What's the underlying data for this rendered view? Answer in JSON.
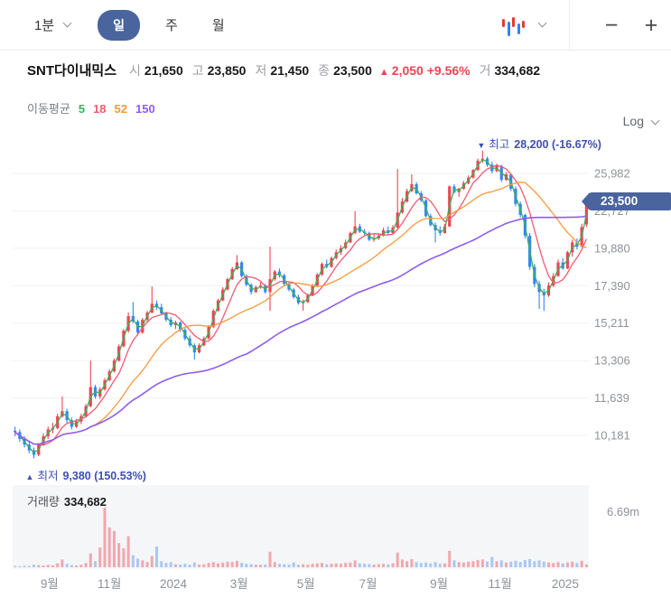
{
  "toolbar": {
    "interval_dropdown": "1분",
    "tabs": [
      {
        "label": "일",
        "active": true
      },
      {
        "label": "주",
        "active": false
      },
      {
        "label": "월",
        "active": false
      }
    ],
    "zoom_out": "−",
    "zoom_in": "+"
  },
  "header": {
    "name": "SNT다이내믹스",
    "open_label": "시",
    "open": "21,650",
    "high_label": "고",
    "high": "23,850",
    "low_label": "저",
    "low": "21,450",
    "close_label": "종",
    "close": "23,500",
    "change_arrow": "▲",
    "change": "2,050",
    "change_pct": "+9.56%",
    "volume_label": "거",
    "volume": "334,682"
  },
  "ma_legend": {
    "label": "이동평균",
    "periods": [
      "5",
      "18",
      "52",
      "150"
    ]
  },
  "scale_control": {
    "label": "Log"
  },
  "annotations": {
    "high": {
      "arrow": "▼",
      "label": "최고",
      "value": "28,200",
      "pct": "(-16.67%)"
    },
    "low": {
      "arrow": "▲",
      "label": "최저",
      "value": "9,380",
      "pct": "(150.53%)"
    }
  },
  "price_badge": "23,500",
  "volume_panel": {
    "label": "거래량",
    "value": "334,682",
    "axis_label": "6.69m"
  },
  "chart_data": {
    "type": "candlestick+volume",
    "scale": "log",
    "grid": true,
    "current_price": 23500,
    "high_value": 28200,
    "low_value": 9380,
    "y_axis": [
      {
        "value": 25982,
        "label": "25,982"
      },
      {
        "value": 22727,
        "label": "22,727"
      },
      {
        "value": 19880,
        "label": "19,880"
      },
      {
        "value": 17390,
        "label": "17,390"
      },
      {
        "value": 15211,
        "label": "15,211"
      },
      {
        "value": 13306,
        "label": "13,306"
      },
      {
        "value": 11639,
        "label": "11,639"
      },
      {
        "value": 10181,
        "label": "10,181"
      }
    ],
    "x_labels": [
      {
        "label": "9월",
        "pos": 0.064
      },
      {
        "label": "11월",
        "pos": 0.168
      },
      {
        "label": "2024",
        "pos": 0.279
      },
      {
        "label": "3월",
        "pos": 0.393
      },
      {
        "label": "5월",
        "pos": 0.509
      },
      {
        "label": "7월",
        "pos": 0.617
      },
      {
        "label": "9월",
        "pos": 0.74
      },
      {
        "label": "11월",
        "pos": 0.846
      },
      {
        "label": "2025",
        "pos": 0.959
      }
    ],
    "ma": {
      "display_periods": [
        5,
        18,
        52,
        150
      ],
      "render_windows": [
        2,
        6,
        17,
        50
      ],
      "colors": [
        "#35b25a",
        "#f15b6e",
        "#f59a3c",
        "#8f5df0"
      ]
    },
    "colors": {
      "up": "#f04452",
      "down": "#3485fa",
      "vol_up": "#f2a7ae",
      "vol_down": "#a9c8f4"
    },
    "volume_axis_max": 6.69,
    "candles": [
      [
        10350,
        10500,
        10150,
        10300
      ],
      [
        10300,
        10400,
        9950,
        10050
      ],
      [
        10050,
        10150,
        9750,
        9850
      ],
      [
        9850,
        9950,
        9550,
        9650
      ],
      [
        9650,
        9750,
        9380,
        9500
      ],
      [
        9500,
        9900,
        9450,
        9850
      ],
      [
        9850,
        10250,
        9800,
        10150
      ],
      [
        10150,
        10500,
        10050,
        10400
      ],
      [
        10400,
        10650,
        10250,
        10450
      ],
      [
        10450,
        11000,
        10400,
        10900
      ],
      [
        10900,
        11700,
        10850,
        11100
      ],
      [
        11100,
        11200,
        10650,
        10750
      ],
      [
        10750,
        10850,
        10400,
        10500
      ],
      [
        10500,
        10800,
        10450,
        10700
      ],
      [
        10700,
        11000,
        10600,
        10900
      ],
      [
        10900,
        11400,
        10850,
        11300
      ],
      [
        11300,
        13300,
        11250,
        12100
      ],
      [
        12100,
        12200,
        11600,
        11700
      ],
      [
        11700,
        12100,
        11600,
        12000
      ],
      [
        12000,
        12500,
        11950,
        12400
      ],
      [
        12400,
        12900,
        12350,
        12800
      ],
      [
        12800,
        13400,
        12750,
        13300
      ],
      [
        13300,
        14100,
        13250,
        14000
      ],
      [
        14000,
        14900,
        13950,
        14800
      ],
      [
        14800,
        15800,
        14700,
        15600
      ],
      [
        15600,
        16400,
        15200,
        15300
      ],
      [
        15300,
        15400,
        14550,
        14700
      ],
      [
        14700,
        15500,
        14650,
        15400
      ],
      [
        15400,
        15900,
        15300,
        15800
      ],
      [
        15800,
        17350,
        15750,
        16300
      ],
      [
        16300,
        16500,
        15950,
        16100
      ],
      [
        16100,
        16300,
        15650,
        15750
      ],
      [
        15750,
        15850,
        15300,
        15400
      ],
      [
        15400,
        15550,
        15000,
        15100
      ],
      [
        15100,
        15350,
        14900,
        15250
      ],
      [
        15250,
        15300,
        14750,
        14850
      ],
      [
        14850,
        14950,
        14300,
        14400
      ],
      [
        14400,
        14550,
        13950,
        14050
      ],
      [
        14050,
        14150,
        13350,
        13700
      ],
      [
        13700,
        14150,
        13650,
        14050
      ],
      [
        14050,
        14500,
        14000,
        14400
      ],
      [
        14400,
        15100,
        14350,
        15000
      ],
      [
        15000,
        16000,
        14950,
        15900
      ],
      [
        15900,
        16600,
        15850,
        16500
      ],
      [
        16500,
        17300,
        16450,
        17150
      ],
      [
        17150,
        17900,
        17100,
        17800
      ],
      [
        17800,
        18600,
        17750,
        18450
      ],
      [
        18450,
        19400,
        18400,
        18900
      ],
      [
        18900,
        19000,
        17900,
        18000
      ],
      [
        18000,
        18100,
        17350,
        17450
      ],
      [
        17450,
        17550,
        16850,
        17000
      ],
      [
        17000,
        17400,
        16950,
        17300
      ],
      [
        17300,
        17600,
        17200,
        17400
      ],
      [
        17400,
        17500,
        16900,
        17000
      ],
      [
        17000,
        20000,
        15900,
        17800
      ],
      [
        17800,
        18400,
        17700,
        18300
      ],
      [
        18300,
        18500,
        17900,
        18050
      ],
      [
        18050,
        18150,
        17400,
        17500
      ],
      [
        17500,
        17650,
        17050,
        17150
      ],
      [
        17150,
        17250,
        16600,
        16700
      ],
      [
        16700,
        16850,
        16250,
        16350
      ],
      [
        16350,
        16550,
        15900,
        16400
      ],
      [
        16400,
        16900,
        16350,
        16800
      ],
      [
        16800,
        17500,
        16750,
        17400
      ],
      [
        17400,
        18200,
        17350,
        18100
      ],
      [
        18100,
        18900,
        18000,
        18800
      ],
      [
        18800,
        19100,
        18500,
        18600
      ],
      [
        18600,
        19300,
        18550,
        19200
      ],
      [
        19200,
        19800,
        19100,
        19600
      ],
      [
        19600,
        20100,
        19400,
        19900
      ],
      [
        19900,
        20500,
        19800,
        20300
      ],
      [
        20300,
        21100,
        20250,
        21000
      ],
      [
        21000,
        22700,
        20900,
        21500
      ],
      [
        21500,
        21700,
        21000,
        21100
      ],
      [
        21100,
        21300,
        20800,
        21000
      ],
      [
        21000,
        21100,
        20400,
        20500
      ],
      [
        20500,
        20900,
        20350,
        20600
      ],
      [
        20600,
        21000,
        20500,
        20800
      ],
      [
        20800,
        21400,
        20750,
        21200
      ],
      [
        21200,
        21500,
        20900,
        21000
      ],
      [
        21000,
        21600,
        20950,
        21400
      ],
      [
        21400,
        26400,
        21350,
        22600
      ],
      [
        22600,
        23800,
        22500,
        23500
      ],
      [
        23500,
        24600,
        23400,
        24400
      ],
      [
        24400,
        25900,
        24300,
        25000
      ],
      [
        25000,
        25200,
        24100,
        24200
      ],
      [
        24200,
        24400,
        23450,
        23600
      ],
      [
        23600,
        23700,
        22200,
        22300
      ],
      [
        22300,
        22500,
        21500,
        21600
      ],
      [
        21600,
        21800,
        20300,
        21200
      ],
      [
        21200,
        21500,
        20800,
        21000
      ],
      [
        21000,
        21700,
        20950,
        21500
      ],
      [
        21500,
        24900,
        21450,
        24800
      ],
      [
        24800,
        25000,
        24200,
        24300
      ],
      [
        24300,
        24700,
        23900,
        24600
      ],
      [
        24600,
        25300,
        24500,
        25100
      ],
      [
        25100,
        25800,
        25000,
        25600
      ],
      [
        25600,
        26400,
        25500,
        26300
      ],
      [
        26300,
        27400,
        26200,
        27200
      ],
      [
        27200,
        28200,
        27000,
        27400
      ],
      [
        27400,
        27600,
        26600,
        26800
      ],
      [
        26800,
        27100,
        26000,
        26200
      ],
      [
        26200,
        26900,
        26100,
        26700
      ],
      [
        26700,
        26800,
        25200,
        25400
      ],
      [
        25400,
        26100,
        25300,
        25900
      ],
      [
        25900,
        26000,
        24400,
        24600
      ],
      [
        24600,
        24800,
        23100,
        23300
      ],
      [
        23300,
        23500,
        22200,
        22400
      ],
      [
        22400,
        22500,
        20600,
        20800
      ],
      [
        20800,
        21000,
        18400,
        18600
      ],
      [
        18600,
        18800,
        17300,
        17500
      ],
      [
        17500,
        17700,
        16000,
        17000
      ],
      [
        17000,
        17200,
        15900,
        16800
      ],
      [
        16800,
        17600,
        16700,
        17400
      ],
      [
        17400,
        18200,
        17300,
        18000
      ],
      [
        18000,
        19100,
        17950,
        18900
      ],
      [
        18900,
        19200,
        18400,
        18500
      ],
      [
        18500,
        19700,
        18450,
        19600
      ],
      [
        19600,
        20500,
        19300,
        20300
      ],
      [
        20300,
        20600,
        19800,
        20000
      ],
      [
        20000,
        21700,
        19950,
        21450
      ],
      [
        21650,
        23850,
        21450,
        23500
      ]
    ],
    "volumes_m": [
      0.15,
      0.12,
      0.18,
      0.14,
      0.3,
      0.25,
      0.2,
      0.28,
      0.22,
      0.45,
      0.9,
      0.4,
      0.25,
      0.2,
      0.3,
      0.5,
      1.6,
      0.7,
      2.3,
      6.9,
      4.6,
      4.2,
      2.8,
      2.2,
      3.6,
      1.4,
      1.0,
      0.8,
      0.6,
      1.3,
      2.4,
      0.7,
      0.5,
      0.6,
      0.35,
      0.3,
      0.4,
      0.3,
      0.55,
      0.3,
      0.35,
      0.5,
      0.6,
      0.45,
      0.55,
      0.65,
      0.6,
      0.75,
      0.5,
      0.4,
      0.35,
      0.3,
      0.28,
      0.32,
      1.8,
      0.6,
      0.4,
      0.35,
      0.3,
      0.55,
      0.3,
      0.35,
      0.3,
      0.4,
      0.45,
      0.5,
      0.35,
      0.4,
      0.45,
      0.4,
      0.5,
      0.55,
      0.8,
      0.45,
      0.4,
      0.35,
      0.3,
      0.35,
      0.4,
      0.35,
      0.45,
      1.7,
      0.9,
      0.7,
      0.95,
      0.6,
      0.5,
      0.55,
      0.45,
      0.6,
      0.4,
      0.45,
      1.9,
      0.8,
      0.6,
      0.55,
      0.65,
      0.7,
      0.85,
      0.9,
      0.65,
      1.2,
      0.7,
      0.8,
      0.55,
      0.65,
      0.75,
      0.6,
      0.85,
      0.95,
      0.7,
      0.8,
      0.65,
      0.55,
      0.5,
      0.6,
      0.45,
      0.55,
      0.65,
      0.5,
      0.75,
      0.33
    ]
  }
}
